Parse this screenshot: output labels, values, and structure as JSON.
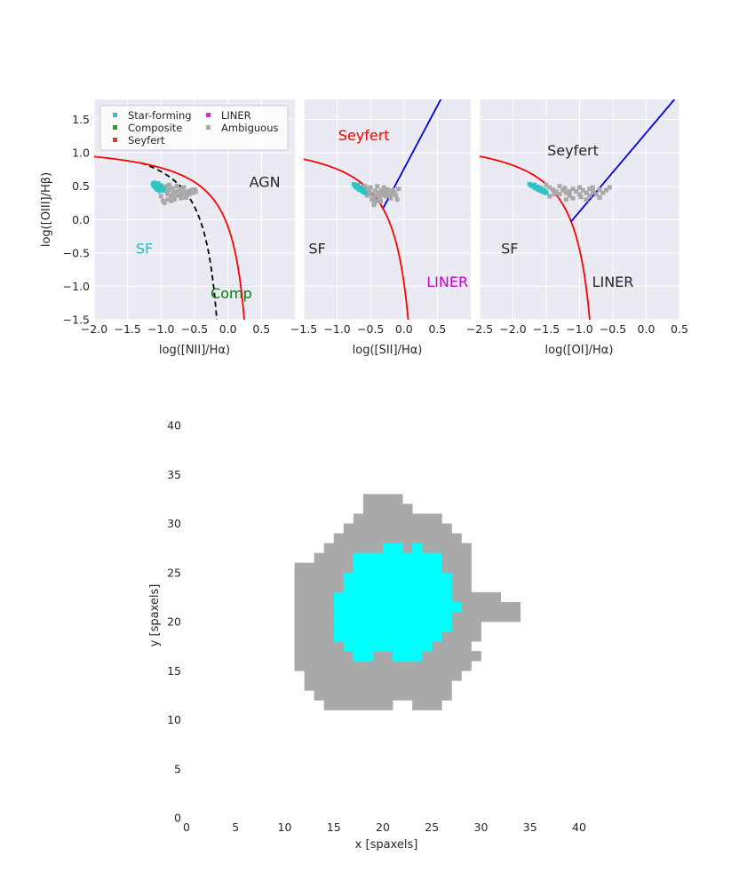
{
  "chart_data": [
    {
      "type": "scatter",
      "panel": "NII",
      "xlabel": "log([NII]/Hα)",
      "ylabel": "log([OIII]/Hβ)",
      "xlim": [
        -2.0,
        1.0
      ],
      "ylim": [
        -1.5,
        1.8
      ],
      "x_ticks": [
        "−2.0",
        "−1.5",
        "−1.0",
        "−0.5",
        "0.0",
        "0.5"
      ],
      "y_ticks": [
        "1.5",
        "1.0",
        "0.5",
        "0.0",
        "−0.5",
        "−1.0",
        "−1.5"
      ],
      "grid": true,
      "legend": {
        "placement": "top-left",
        "entries": [
          {
            "label": "Star-forming",
            "color": "#2ec4c4"
          },
          {
            "label": "Composite",
            "color": "#2ca02c"
          },
          {
            "label": "Seyfert",
            "color": "#e83030"
          },
          {
            "label": "LINER",
            "color": "#cc33cc"
          },
          {
            "label": "Ambiguous",
            "color": "#a9a9a9"
          }
        ]
      },
      "region_labels": [
        {
          "text": "AGN",
          "x": 0.55,
          "y": 0.55,
          "color": "#262626"
        },
        {
          "text": "SF",
          "x": -1.25,
          "y": -0.45,
          "color": "#17becf"
        },
        {
          "text": "Comp",
          "x": 0.05,
          "y": -1.12,
          "color": "#008000"
        }
      ],
      "points": {
        "Star-forming": [
          [
            -1.1,
            0.55
          ],
          [
            -1.08,
            0.52
          ],
          [
            -1.05,
            0.5
          ],
          [
            -1.03,
            0.48
          ],
          [
            -1.0,
            0.47
          ],
          [
            -1.12,
            0.53
          ],
          [
            -1.06,
            0.45
          ],
          [
            -1.02,
            0.43
          ],
          [
            -0.98,
            0.44
          ],
          [
            -1.09,
            0.49
          ],
          [
            -1.04,
            0.54
          ],
          [
            -1.0,
            0.51
          ],
          [
            -1.07,
            0.47
          ],
          [
            -0.96,
            0.46
          ],
          [
            -1.11,
            0.51
          ]
        ],
        "Ambiguous": [
          [
            -0.95,
            0.48
          ],
          [
            -0.92,
            0.42
          ],
          [
            -0.9,
            0.38
          ],
          [
            -0.88,
            0.45
          ],
          [
            -0.85,
            0.35
          ],
          [
            -0.82,
            0.4
          ],
          [
            -0.8,
            0.3
          ],
          [
            -0.78,
            0.42
          ],
          [
            -0.75,
            0.36
          ],
          [
            -0.72,
            0.44
          ],
          [
            -0.7,
            0.38
          ],
          [
            -0.68,
            0.46
          ],
          [
            -0.65,
            0.4
          ],
          [
            -0.62,
            0.35
          ],
          [
            -0.6,
            0.42
          ],
          [
            -0.58,
            0.38
          ],
          [
            -0.55,
            0.44
          ],
          [
            -0.52,
            0.4
          ],
          [
            -0.5,
            0.45
          ],
          [
            -0.48,
            0.42
          ],
          [
            -0.95,
            0.25
          ],
          [
            -0.9,
            0.3
          ],
          [
            -0.85,
            0.28
          ],
          [
            -0.8,
            0.34
          ],
          [
            -0.92,
            0.5
          ],
          [
            -0.88,
            0.52
          ],
          [
            -0.7,
            0.32
          ],
          [
            -0.66,
            0.48
          ],
          [
            -1.0,
            0.35
          ],
          [
            -0.97,
            0.28
          ],
          [
            -0.83,
            0.47
          ],
          [
            -0.76,
            0.5
          ],
          [
            -0.63,
            0.33
          ]
        ]
      }
    },
    {
      "type": "scatter",
      "panel": "SII",
      "xlabel": "log([SII]/Hα)",
      "xlim": [
        -1.5,
        1.0
      ],
      "ylim": [
        -1.5,
        1.8
      ],
      "x_ticks": [
        "−1.5",
        "−1.0",
        "−0.5",
        "0.0",
        "0.5"
      ],
      "grid": true,
      "region_labels": [
        {
          "text": "Seyfert",
          "x": -0.6,
          "y": 1.25,
          "color": "#ff0000"
        },
        {
          "text": "SF",
          "x": -1.3,
          "y": -0.45,
          "color": "#262626"
        },
        {
          "text": "LINER",
          "x": 0.65,
          "y": -0.95,
          "color": "#cc00cc"
        }
      ],
      "points": {
        "Star-forming": [
          [
            -0.75,
            0.53
          ],
          [
            -0.72,
            0.51
          ],
          [
            -0.7,
            0.49
          ],
          [
            -0.68,
            0.47
          ],
          [
            -0.66,
            0.46
          ],
          [
            -0.64,
            0.44
          ],
          [
            -0.62,
            0.43
          ],
          [
            -0.6,
            0.41
          ],
          [
            -0.73,
            0.5
          ],
          [
            -0.69,
            0.52
          ],
          [
            -0.65,
            0.48
          ],
          [
            -0.61,
            0.45
          ],
          [
            -0.58,
            0.4
          ],
          [
            -0.71,
            0.48
          ],
          [
            -0.67,
            0.45
          ]
        ],
        "Ambiguous": [
          [
            -0.58,
            0.5
          ],
          [
            -0.55,
            0.46
          ],
          [
            -0.52,
            0.42
          ],
          [
            -0.5,
            0.38
          ],
          [
            -0.48,
            0.3
          ],
          [
            -0.46,
            0.34
          ],
          [
            -0.44,
            0.25
          ],
          [
            -0.42,
            0.28
          ],
          [
            -0.4,
            0.36
          ],
          [
            -0.38,
            0.4
          ],
          [
            -0.36,
            0.33
          ],
          [
            -0.34,
            0.44
          ],
          [
            -0.32,
            0.38
          ],
          [
            -0.3,
            0.42
          ],
          [
            -0.28,
            0.35
          ],
          [
            -0.26,
            0.4
          ],
          [
            -0.24,
            0.45
          ],
          [
            -0.22,
            0.36
          ],
          [
            -0.2,
            0.42
          ],
          [
            -0.18,
            0.38
          ],
          [
            -0.16,
            0.44
          ],
          [
            -0.14,
            0.4
          ],
          [
            -0.12,
            0.36
          ],
          [
            -0.1,
            0.3
          ],
          [
            -0.08,
            0.46
          ],
          [
            -0.45,
            0.22
          ],
          [
            -0.5,
            0.48
          ],
          [
            -0.4,
            0.5
          ],
          [
            -0.35,
            0.27
          ],
          [
            -0.3,
            0.48
          ],
          [
            -0.2,
            0.32
          ],
          [
            -0.55,
            0.36
          ],
          [
            -0.43,
            0.43
          ]
        ]
      }
    },
    {
      "type": "scatter",
      "panel": "OI",
      "xlabel": "log([OI]/Hα)",
      "xlim": [
        -2.5,
        0.5
      ],
      "ylim": [
        -1.5,
        1.8
      ],
      "x_ticks": [
        "−2.5",
        "−2.0",
        "−1.5",
        "−1.0",
        "−0.5",
        "0.0",
        "0.5"
      ],
      "grid": true,
      "region_labels": [
        {
          "text": "Seyfert",
          "x": -1.1,
          "y": 1.02,
          "color": "#262626"
        },
        {
          "text": "SF",
          "x": -2.05,
          "y": -0.45,
          "color": "#262626"
        },
        {
          "text": "LINER",
          "x": -0.5,
          "y": -0.95,
          "color": "#262626"
        }
      ],
      "points": {
        "Star-forming": [
          [
            -1.75,
            0.53
          ],
          [
            -1.72,
            0.51
          ],
          [
            -1.7,
            0.5
          ],
          [
            -1.67,
            0.48
          ],
          [
            -1.65,
            0.47
          ],
          [
            -1.62,
            0.45
          ],
          [
            -1.6,
            0.44
          ],
          [
            -1.57,
            0.43
          ],
          [
            -1.55,
            0.42
          ],
          [
            -1.52,
            0.41
          ],
          [
            -1.5,
            0.4
          ],
          [
            -1.68,
            0.52
          ],
          [
            -1.63,
            0.49
          ],
          [
            -1.58,
            0.47
          ],
          [
            -1.53,
            0.44
          ]
        ],
        "Ambiguous": [
          [
            -1.5,
            0.52
          ],
          [
            -1.45,
            0.48
          ],
          [
            -1.4,
            0.45
          ],
          [
            -1.35,
            0.42
          ],
          [
            -1.3,
            0.38
          ],
          [
            -1.25,
            0.44
          ],
          [
            -1.2,
            0.4
          ],
          [
            -1.15,
            0.36
          ],
          [
            -1.1,
            0.46
          ],
          [
            -1.05,
            0.42
          ],
          [
            -1.0,
            0.38
          ],
          [
            -0.95,
            0.44
          ],
          [
            -0.9,
            0.4
          ],
          [
            -0.85,
            0.36
          ],
          [
            -0.8,
            0.42
          ],
          [
            -0.75,
            0.38
          ],
          [
            -0.7,
            0.45
          ],
          [
            -0.65,
            0.4
          ],
          [
            -0.6,
            0.44
          ],
          [
            -0.55,
            0.48
          ],
          [
            -1.45,
            0.35
          ],
          [
            -1.3,
            0.5
          ],
          [
            -1.2,
            0.3
          ],
          [
            -1.1,
            0.32
          ],
          [
            -1.0,
            0.48
          ],
          [
            -0.9,
            0.3
          ],
          [
            -0.8,
            0.48
          ],
          [
            -0.7,
            0.33
          ],
          [
            -1.38,
            0.38
          ],
          [
            -1.22,
            0.47
          ],
          [
            -0.98,
            0.34
          ],
          [
            -0.85,
            0.46
          ],
          [
            -1.15,
            0.42
          ]
        ]
      }
    },
    {
      "type": "heatmap",
      "panel": "map",
      "xlabel": "x [spaxels]",
      "ylabel": "y [spaxels]",
      "xlim": [
        0,
        45
      ],
      "ylim": [
        0,
        45
      ],
      "x_ticks": [
        "0",
        "5",
        "10",
        "15",
        "20",
        "25",
        "30",
        "35",
        "40"
      ],
      "y_ticks": [
        "0",
        "5",
        "10",
        "15",
        "20",
        "25",
        "30",
        "35",
        "40"
      ],
      "grid": false,
      "colors": {
        "Ambiguous": "#a9a9a9",
        "Star-forming": "#00ffff"
      },
      "ambiguous_rows": [
        {
          "y": 32,
          "x0": 18,
          "x1": 21
        },
        {
          "y": 31,
          "x0": 18,
          "x1": 22
        },
        {
          "y": 30,
          "x0": 17,
          "x1": 25
        },
        {
          "y": 29,
          "x0": 16,
          "x1": 26
        },
        {
          "y": 28,
          "x0": 15,
          "x1": 27
        },
        {
          "y": 27,
          "x0": 14,
          "x1": 28
        },
        {
          "y": 26,
          "x0": 13,
          "x1": 28
        },
        {
          "y": 25,
          "x0": 11,
          "x1": 28
        },
        {
          "y": 24,
          "x0": 11,
          "x1": 28
        },
        {
          "y": 23,
          "x0": 11,
          "x1": 28
        },
        {
          "y": 22,
          "x0": 11,
          "x1": 31
        },
        {
          "y": 21,
          "x0": 11,
          "x1": 33
        },
        {
          "y": 20,
          "x0": 11,
          "x1": 33
        },
        {
          "y": 19,
          "x0": 11,
          "x1": 29
        },
        {
          "y": 18,
          "x0": 11,
          "x1": 29
        },
        {
          "y": 17,
          "x0": 11,
          "x1": 28
        },
        {
          "y": 16,
          "x0": 11,
          "x1": 29
        },
        {
          "y": 15,
          "x0": 11,
          "x1": 28
        },
        {
          "y": 14,
          "x0": 12,
          "x1": 27
        },
        {
          "y": 13,
          "x0": 12,
          "x1": 26
        },
        {
          "y": 12,
          "x0": 13,
          "x1": 26
        },
        {
          "y": 11,
          "x0": 14,
          "x1": 20
        },
        {
          "y": 11,
          "x0": 23,
          "x1": 25
        }
      ],
      "starforming_rows": [
        {
          "y": 27,
          "x0": 20,
          "x1": 21
        },
        {
          "y": 27,
          "x0": 23,
          "x1": 23
        },
        {
          "y": 26,
          "x0": 17,
          "x1": 25
        },
        {
          "y": 25,
          "x0": 17,
          "x1": 25
        },
        {
          "y": 24,
          "x0": 16,
          "x1": 26
        },
        {
          "y": 23,
          "x0": 16,
          "x1": 26
        },
        {
          "y": 22,
          "x0": 15,
          "x1": 26
        },
        {
          "y": 21,
          "x0": 15,
          "x1": 27
        },
        {
          "y": 20,
          "x0": 15,
          "x1": 26
        },
        {
          "y": 19,
          "x0": 15,
          "x1": 26
        },
        {
          "y": 18,
          "x0": 15,
          "x1": 25
        },
        {
          "y": 17,
          "x0": 16,
          "x1": 24
        },
        {
          "y": 16,
          "x0": 17,
          "x1": 18
        },
        {
          "y": 16,
          "x0": 21,
          "x1": 23
        }
      ]
    }
  ]
}
